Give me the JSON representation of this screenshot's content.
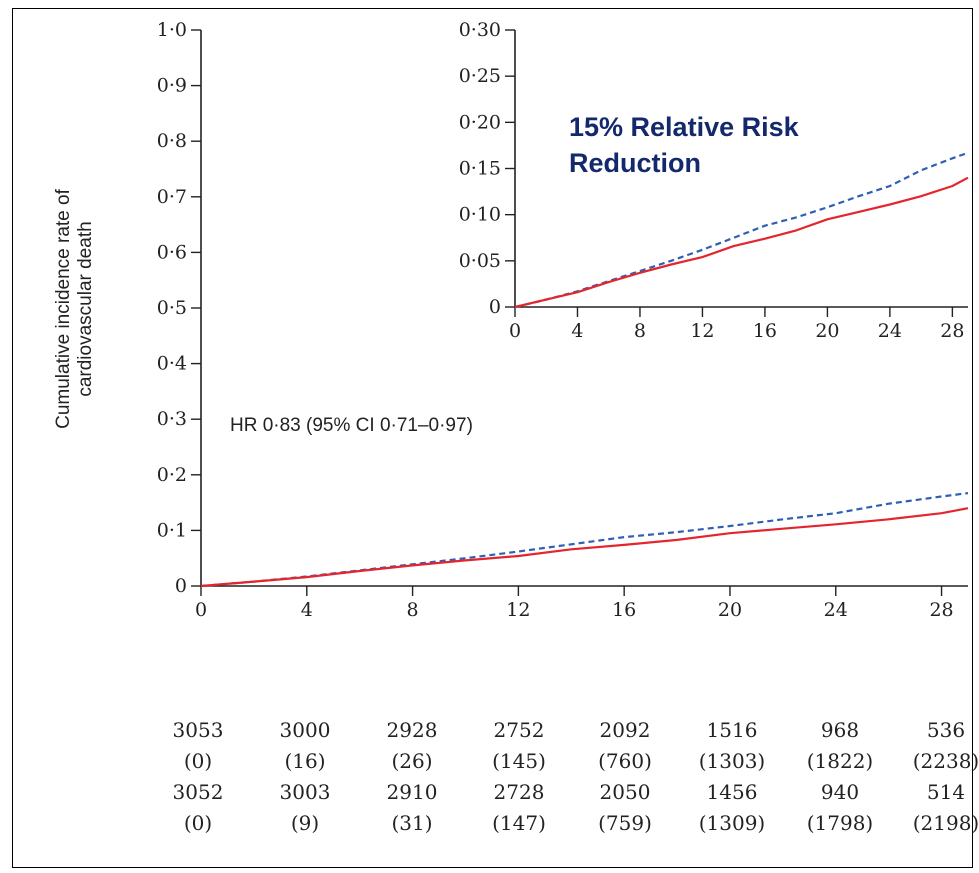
{
  "chart_data": [
    {
      "type": "line",
      "id": "main",
      "ylabel": "Cumulative incidence rate of cardiovascular death",
      "ylabel_lines": [
        "Cumulative incidence rate of",
        "cardiovascular death"
      ],
      "annotation": "HR 0·83 (95% CI 0·71–0·97)",
      "xlim": [
        0,
        29
      ],
      "ylim": [
        0,
        1.0
      ],
      "x_ticks": [
        0,
        4,
        8,
        12,
        16,
        20,
        24,
        28
      ],
      "x_tick_labels": [
        "0",
        "4",
        "8",
        "12",
        "16",
        "20",
        "24",
        "28"
      ],
      "y_ticks": [
        0,
        0.1,
        0.2,
        0.3,
        0.4,
        0.5,
        0.6,
        0.7,
        0.8,
        0.9,
        1.0
      ],
      "y_tick_labels": [
        "0",
        "0·1",
        "0·2",
        "0·3",
        "0·4",
        "0·5",
        "0·6",
        "0·7",
        "0·8",
        "0·9",
        "1·0"
      ],
      "grid": false,
      "series": [
        {
          "style": "dashed",
          "color": "#2f5fb3",
          "x": [
            0,
            2,
            4,
            6,
            8,
            10,
            12,
            14,
            16,
            18,
            20,
            22,
            24,
            26,
            28,
            29
          ],
          "values": [
            0,
            0.008,
            0.017,
            0.028,
            0.039,
            0.05,
            0.062,
            0.075,
            0.088,
            0.097,
            0.108,
            0.12,
            0.131,
            0.148,
            0.161,
            0.167
          ]
        },
        {
          "style": "solid",
          "color": "#e3262e",
          "x": [
            0,
            2,
            4,
            6,
            8,
            10,
            12,
            14,
            16,
            18,
            20,
            22,
            24,
            26,
            28,
            29
          ],
          "values": [
            0,
            0.008,
            0.016,
            0.027,
            0.037,
            0.046,
            0.054,
            0.066,
            0.074,
            0.083,
            0.095,
            0.103,
            0.111,
            0.12,
            0.131,
            0.14
          ]
        }
      ]
    },
    {
      "type": "line",
      "id": "inset",
      "title": "15% Relative Risk Reduction",
      "title_lines": [
        "15% Relative Risk",
        "Reduction"
      ],
      "xlim": [
        0,
        29
      ],
      "ylim": [
        0,
        0.3
      ],
      "x_ticks": [
        0,
        4,
        8,
        12,
        16,
        20,
        24,
        28
      ],
      "x_tick_labels": [
        "0",
        "4",
        "8",
        "12",
        "16",
        "20",
        "24",
        "28"
      ],
      "y_ticks": [
        0,
        0.05,
        0.1,
        0.15,
        0.2,
        0.25,
        0.3
      ],
      "y_tick_labels": [
        "0",
        "0·05",
        "0·10",
        "0·15",
        "0·20",
        "0·25",
        "0·30"
      ],
      "grid": false,
      "series": [
        {
          "style": "dashed",
          "color": "#2f5fb3",
          "x": [
            0,
            2,
            4,
            6,
            8,
            10,
            12,
            14,
            16,
            18,
            20,
            22,
            24,
            26,
            28,
            29
          ],
          "values": [
            0,
            0.008,
            0.017,
            0.028,
            0.039,
            0.05,
            0.062,
            0.075,
            0.088,
            0.097,
            0.108,
            0.12,
            0.131,
            0.148,
            0.161,
            0.167
          ]
        },
        {
          "style": "solid",
          "color": "#e3262e",
          "x": [
            0,
            2,
            4,
            6,
            8,
            10,
            12,
            14,
            16,
            18,
            20,
            22,
            24,
            26,
            28,
            29
          ],
          "values": [
            0,
            0.008,
            0.016,
            0.027,
            0.037,
            0.046,
            0.054,
            0.066,
            0.074,
            0.083,
            0.095,
            0.103,
            0.111,
            0.12,
            0.131,
            0.14
          ]
        }
      ]
    }
  ],
  "risk_table": {
    "rows": [
      [
        "3053",
        "3000",
        "2928",
        "2752",
        "2092",
        "1516",
        "968",
        "536"
      ],
      [
        "(0)",
        "(16)",
        "(26)",
        "(145)",
        "(760)",
        "(1303)",
        "(1822)",
        "(2238)"
      ],
      [
        "3052",
        "3003",
        "2910",
        "2728",
        "2050",
        "1456",
        "940",
        "514"
      ],
      [
        "(0)",
        "(9)",
        "(31)",
        "(147)",
        "(759)",
        "(1309)",
        "(1798)",
        "(2198)"
      ]
    ]
  }
}
